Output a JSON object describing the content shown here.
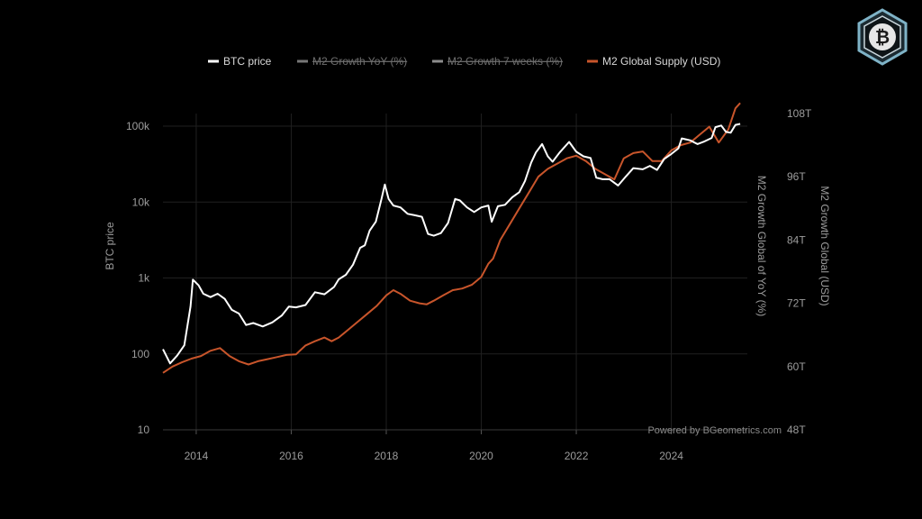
{
  "chart_data": {
    "type": "line",
    "xlabel": "",
    "ylabel_left": "BTC price",
    "ylabel_right_1": "M2 Growth Global of YoY (%)",
    "ylabel_right_2": "M2 Growth Global (USD)",
    "x_range": [
      2013.3,
      2025.6
    ],
    "x_ticks": [
      "2014",
      "2016",
      "2018",
      "2020",
      "2022",
      "2024"
    ],
    "y_left": {
      "scale": "log",
      "range": [
        10,
        100000
      ],
      "ticks": [
        "10",
        "100",
        "1k",
        "10k",
        "100k"
      ]
    },
    "y_right": {
      "scale": "linear",
      "range": [
        48,
        108
      ],
      "unit": "T",
      "ticks": [
        "48T",
        "60T",
        "72T",
        "84T",
        "96T",
        "108T"
      ]
    },
    "grid": true,
    "legend_position": "top-center",
    "legend": [
      {
        "name": "BTC price",
        "color": "#ffffff",
        "active": true
      },
      {
        "name": "M2 Growth YoY (%)",
        "color": "#777777",
        "active": false
      },
      {
        "name": "M2 Growth 7 weeks (%)",
        "color": "#8c8c8c",
        "active": false
      },
      {
        "name": "M2 Global Supply (USD)",
        "color": "#c8552b",
        "active": true
      }
    ],
    "series": [
      {
        "name": "BTC price",
        "axis": "left",
        "color": "#ffffff",
        "points": [
          [
            2013.3,
            115
          ],
          [
            2013.45,
            75
          ],
          [
            2013.6,
            95
          ],
          [
            2013.75,
            130
          ],
          [
            2013.88,
            420
          ],
          [
            2013.93,
            950
          ],
          [
            2014.05,
            800
          ],
          [
            2014.15,
            620
          ],
          [
            2014.3,
            560
          ],
          [
            2014.45,
            620
          ],
          [
            2014.6,
            530
          ],
          [
            2014.75,
            380
          ],
          [
            2014.9,
            340
          ],
          [
            2015.05,
            240
          ],
          [
            2015.2,
            255
          ],
          [
            2015.4,
            230
          ],
          [
            2015.6,
            260
          ],
          [
            2015.8,
            320
          ],
          [
            2015.95,
            420
          ],
          [
            2016.1,
            410
          ],
          [
            2016.3,
            440
          ],
          [
            2016.5,
            650
          ],
          [
            2016.7,
            610
          ],
          [
            2016.9,
            760
          ],
          [
            2017.0,
            960
          ],
          [
            2017.15,
            1100
          ],
          [
            2017.3,
            1500
          ],
          [
            2017.45,
            2500
          ],
          [
            2017.55,
            2700
          ],
          [
            2017.65,
            4200
          ],
          [
            2017.78,
            5500
          ],
          [
            2017.9,
            11000
          ],
          [
            2017.97,
            17000
          ],
          [
            2018.05,
            11000
          ],
          [
            2018.15,
            9000
          ],
          [
            2018.3,
            8500
          ],
          [
            2018.45,
            7000
          ],
          [
            2018.6,
            6700
          ],
          [
            2018.75,
            6400
          ],
          [
            2018.88,
            3800
          ],
          [
            2019.0,
            3600
          ],
          [
            2019.15,
            3900
          ],
          [
            2019.3,
            5300
          ],
          [
            2019.45,
            11000
          ],
          [
            2019.55,
            10500
          ],
          [
            2019.7,
            8500
          ],
          [
            2019.85,
            7400
          ],
          [
            2020.0,
            8500
          ],
          [
            2020.15,
            9000
          ],
          [
            2020.22,
            5500
          ],
          [
            2020.35,
            8800
          ],
          [
            2020.5,
            9200
          ],
          [
            2020.65,
            11500
          ],
          [
            2020.8,
            13500
          ],
          [
            2020.92,
            19000
          ],
          [
            2021.05,
            33000
          ],
          [
            2021.15,
            45000
          ],
          [
            2021.28,
            58000
          ],
          [
            2021.4,
            40000
          ],
          [
            2021.5,
            34000
          ],
          [
            2021.65,
            45000
          ],
          [
            2021.85,
            62000
          ],
          [
            2022.0,
            46000
          ],
          [
            2022.15,
            40000
          ],
          [
            2022.3,
            38000
          ],
          [
            2022.42,
            21000
          ],
          [
            2022.55,
            20000
          ],
          [
            2022.7,
            20000
          ],
          [
            2022.88,
            16500
          ],
          [
            2023.05,
            22000
          ],
          [
            2023.2,
            28000
          ],
          [
            2023.4,
            27000
          ],
          [
            2023.55,
            30000
          ],
          [
            2023.7,
            26500
          ],
          [
            2023.85,
            37000
          ],
          [
            2024.0,
            43000
          ],
          [
            2024.15,
            51000
          ],
          [
            2024.22,
            69000
          ],
          [
            2024.4,
            65000
          ],
          [
            2024.55,
            58000
          ],
          [
            2024.7,
            63000
          ],
          [
            2024.85,
            70000
          ],
          [
            2024.93,
            97000
          ],
          [
            2025.05,
            102000
          ],
          [
            2025.15,
            84000
          ],
          [
            2025.25,
            82000
          ],
          [
            2025.35,
            104000
          ],
          [
            2025.45,
            107000
          ]
        ]
      },
      {
        "name": "M2 Global Supply (USD)",
        "axis": "right",
        "color": "#c8552b",
        "points": [
          [
            2013.3,
            58.8
          ],
          [
            2013.5,
            60.0
          ],
          [
            2013.7,
            60.8
          ],
          [
            2013.9,
            61.5
          ],
          [
            2014.1,
            62.0
          ],
          [
            2014.3,
            63.0
          ],
          [
            2014.5,
            63.5
          ],
          [
            2014.7,
            62.0
          ],
          [
            2014.9,
            61.0
          ],
          [
            2015.1,
            60.4
          ],
          [
            2015.3,
            61.0
          ],
          [
            2015.5,
            61.4
          ],
          [
            2015.7,
            61.8
          ],
          [
            2015.9,
            62.2
          ],
          [
            2016.1,
            62.3
          ],
          [
            2016.3,
            64.0
          ],
          [
            2016.5,
            64.8
          ],
          [
            2016.7,
            65.5
          ],
          [
            2016.85,
            64.8
          ],
          [
            2017.0,
            65.5
          ],
          [
            2017.2,
            67.0
          ],
          [
            2017.4,
            68.5
          ],
          [
            2017.6,
            70.0
          ],
          [
            2017.8,
            71.5
          ],
          [
            2018.0,
            73.5
          ],
          [
            2018.15,
            74.5
          ],
          [
            2018.3,
            73.8
          ],
          [
            2018.5,
            72.5
          ],
          [
            2018.7,
            72.0
          ],
          [
            2018.85,
            71.8
          ],
          [
            2019.0,
            72.5
          ],
          [
            2019.2,
            73.5
          ],
          [
            2019.4,
            74.5
          ],
          [
            2019.6,
            74.8
          ],
          [
            2019.8,
            75.5
          ],
          [
            2020.0,
            77.0
          ],
          [
            2020.15,
            79.5
          ],
          [
            2020.25,
            80.5
          ],
          [
            2020.4,
            84.0
          ],
          [
            2020.6,
            87.0
          ],
          [
            2020.8,
            90.0
          ],
          [
            2021.0,
            93.0
          ],
          [
            2021.2,
            96.0
          ],
          [
            2021.4,
            97.5
          ],
          [
            2021.6,
            98.5
          ],
          [
            2021.8,
            99.5
          ],
          [
            2022.0,
            100.0
          ],
          [
            2022.2,
            99.0
          ],
          [
            2022.4,
            97.5
          ],
          [
            2022.6,
            96.5
          ],
          [
            2022.8,
            95.5
          ],
          [
            2023.0,
            99.5
          ],
          [
            2023.2,
            100.5
          ],
          [
            2023.4,
            100.8
          ],
          [
            2023.6,
            99.0
          ],
          [
            2023.8,
            99.0
          ],
          [
            2024.0,
            101.0
          ],
          [
            2024.2,
            102.0
          ],
          [
            2024.4,
            102.5
          ],
          [
            2024.6,
            104.0
          ],
          [
            2024.8,
            105.5
          ],
          [
            2025.0,
            102.5
          ],
          [
            2025.2,
            105.0
          ],
          [
            2025.35,
            109.0
          ],
          [
            2025.45,
            110.0
          ]
        ]
      }
    ],
    "credit": "Powered by BGeometrics.com"
  },
  "logo": {
    "icon": "bitcoin-badge-icon",
    "glyph": "₿",
    "accent": "#7fb3c7"
  }
}
